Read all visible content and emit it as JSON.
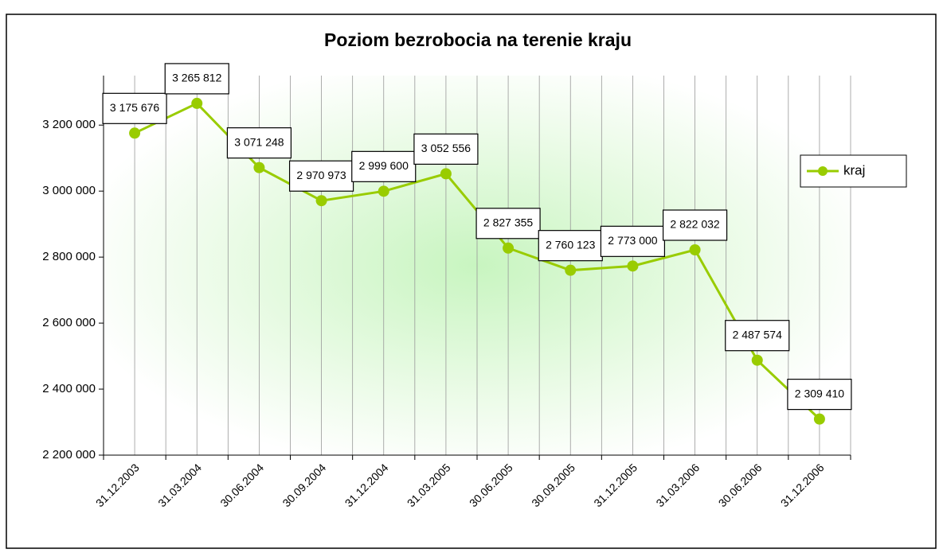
{
  "chart_data": {
    "type": "line",
    "title": "Poziom bezrobocia na terenie kraju",
    "categories": [
      "31.12.2003",
      "31.03.2004",
      "30.06.2004",
      "30.09.2004",
      "31.12.2004",
      "31.03.2005",
      "30.06.2005",
      "30.09.2005",
      "31.12.2005",
      "31.03.2006",
      "30.06.2006",
      "31.12.2006"
    ],
    "series": [
      {
        "name": "kraj",
        "color": "#99cc00",
        "values": [
          3175676,
          3265812,
          3071248,
          2970973,
          2999600,
          3052556,
          2827355,
          2760123,
          2773000,
          2822032,
          2487574,
          2309410
        ],
        "value_labels": [
          "3 175 676",
          "3 265 812",
          "3 071 248",
          "2 970 973",
          "2 999 600",
          "3 052 556",
          "2 827 355",
          "2 760 123",
          "2 773 000",
          "2 822 032",
          "2 487 574",
          "2 309 410"
        ]
      }
    ],
    "ylim": [
      2200000,
      3350000
    ],
    "yticks": [
      {
        "value": 2200000,
        "label": "2 200 000"
      },
      {
        "value": 2400000,
        "label": "2 400 000"
      },
      {
        "value": 2600000,
        "label": "2 600 000"
      },
      {
        "value": 2800000,
        "label": "2 800 000"
      },
      {
        "value": 3000000,
        "label": "3 000 000"
      },
      {
        "value": 3200000,
        "label": "3 200 000"
      }
    ],
    "legend": "right"
  }
}
